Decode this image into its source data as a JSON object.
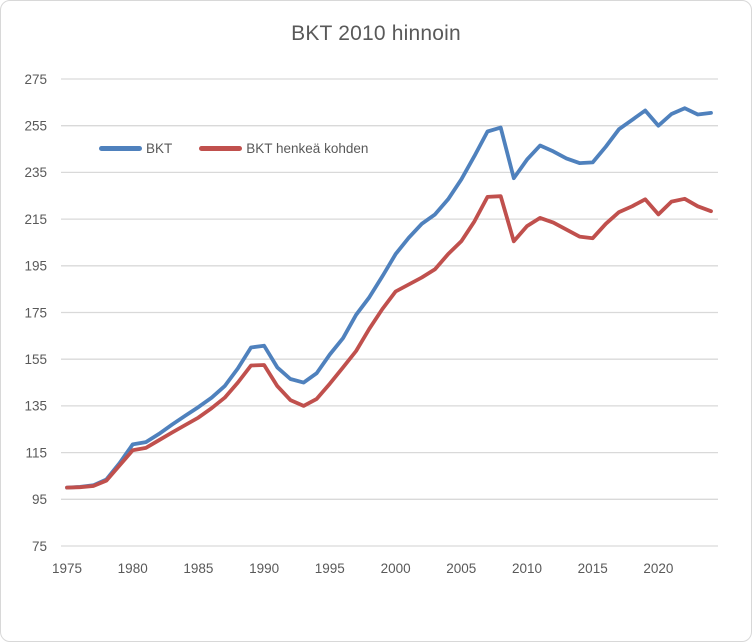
{
  "frame": {
    "background": "#ffffff",
    "border_color": "#d8d8d8"
  },
  "chart_data": {
    "type": "line",
    "title": "BKT 2010 hinnoin",
    "x": [
      1975,
      1976,
      1977,
      1978,
      1979,
      1980,
      1981,
      1982,
      1983,
      1984,
      1985,
      1986,
      1987,
      1988,
      1989,
      1990,
      1991,
      1992,
      1993,
      1994,
      1995,
      1996,
      1997,
      1998,
      1999,
      2000,
      2001,
      2002,
      2003,
      2004,
      2005,
      2006,
      2007,
      2008,
      2009,
      2010,
      2011,
      2012,
      2013,
      2014,
      2015,
      2016,
      2017,
      2018,
      2019,
      2020,
      2021,
      2022,
      2023,
      2024
    ],
    "series": [
      {
        "name": "BKT",
        "color": "#4F81BD",
        "values": [
          100,
          100.3,
          101,
          103.5,
          110.5,
          118.5,
          119.5,
          123,
          127,
          130.8,
          134.5,
          138.5,
          143.5,
          151,
          160,
          160.8,
          151.5,
          146.5,
          145,
          149,
          157,
          164,
          174,
          181.5,
          190.5,
          200,
          207,
          213,
          217,
          223.5,
          232,
          242,
          252.5,
          254.2,
          232.5,
          240.5,
          246.5,
          244,
          241,
          239,
          239.3,
          246,
          253.5,
          257.5,
          261.5,
          255,
          260,
          262.5,
          259.8,
          260.5
        ]
      },
      {
        "name": "BKT henkeä kohden",
        "color": "#C0504D",
        "values": [
          100,
          100.2,
          100.7,
          103,
          109.5,
          116,
          117,
          120.3,
          123.6,
          126.8,
          130,
          134,
          138.5,
          145,
          152.3,
          152.5,
          143.5,
          137.5,
          135,
          138,
          144.5,
          151.5,
          158.5,
          168,
          176.5,
          184,
          187,
          190,
          193.5,
          200,
          205.5,
          214,
          224.5,
          224.8,
          205.5,
          212,
          215.5,
          213.5,
          210.5,
          207.5,
          206.8,
          213,
          218,
          220.5,
          223.5,
          217,
          222.5,
          223.7,
          220.5,
          218.4
        ]
      }
    ],
    "xticks": [
      1975,
      1980,
      1985,
      1990,
      1995,
      2000,
      2005,
      2010,
      2015,
      2020
    ],
    "yticks": [
      75,
      95,
      115,
      135,
      155,
      175,
      195,
      215,
      235,
      255,
      275
    ],
    "ylim": [
      75,
      275
    ],
    "grid": "horizontal",
    "gridline_color": "#D9D9D9",
    "text_color": "#595959",
    "legend_position": "upper-left-inside"
  }
}
